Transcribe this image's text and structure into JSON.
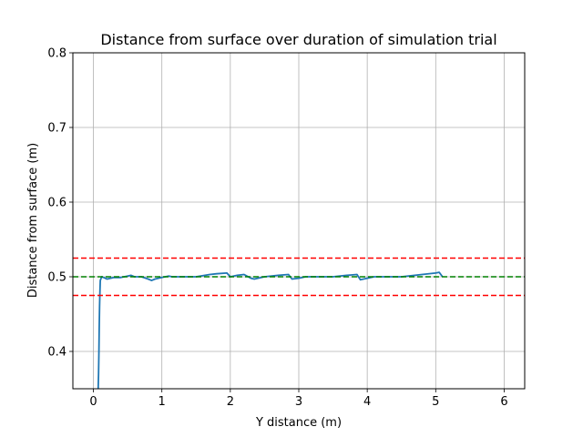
{
  "chart_data": {
    "type": "line",
    "title": "Distance from surface over duration of simulation trial",
    "xlabel": "Y distance (m)",
    "ylabel": "Distance from surface (m)",
    "xlim": [
      -0.3,
      6.3
    ],
    "ylim": [
      0.35,
      0.8
    ],
    "xticks": [
      0,
      1,
      2,
      3,
      4,
      5,
      6
    ],
    "yticks": [
      0.4,
      0.5,
      0.6,
      0.7,
      0.8
    ],
    "xtick_labels": [
      "0",
      "1",
      "2",
      "3",
      "4",
      "5",
      "6"
    ],
    "ytick_labels": [
      "0.4",
      "0.5",
      "0.6",
      "0.7",
      "0.8"
    ],
    "grid": true,
    "series": [
      {
        "color": "#1f77b4",
        "style": "solid",
        "x": [
          0.07,
          0.075,
          0.08,
          0.085,
          0.09,
          0.095,
          0.1,
          0.12,
          0.15,
          0.2,
          0.3,
          0.4,
          0.5,
          0.55,
          0.6,
          0.7,
          0.8,
          0.85,
          0.9,
          1.0,
          1.1,
          1.15,
          1.3,
          1.5,
          1.7,
          1.8,
          1.95,
          2.0,
          2.1,
          2.2,
          2.3,
          2.35,
          2.5,
          2.7,
          2.85,
          2.9,
          3.0,
          3.1,
          3.3,
          3.5,
          3.7,
          3.85,
          3.9,
          4.0,
          4.1,
          4.3,
          4.5,
          4.8,
          5.0,
          5.05,
          5.1
        ],
        "y": [
          0.35,
          0.37,
          0.4,
          0.43,
          0.46,
          0.48,
          0.495,
          0.5,
          0.499,
          0.497,
          0.499,
          0.499,
          0.501,
          0.502,
          0.5,
          0.5,
          0.497,
          0.495,
          0.497,
          0.499,
          0.501,
          0.5,
          0.5,
          0.5,
          0.503,
          0.504,
          0.505,
          0.5,
          0.502,
          0.503,
          0.498,
          0.497,
          0.5,
          0.502,
          0.503,
          0.497,
          0.498,
          0.5,
          0.5,
          0.5,
          0.502,
          0.503,
          0.496,
          0.498,
          0.5,
          0.5,
          0.5,
          0.503,
          0.505,
          0.506,
          0.5
        ]
      },
      {
        "color": "#ff0000",
        "style": "dashed",
        "x": [
          -0.3,
          6.3
        ],
        "y": [
          0.525,
          0.525
        ]
      },
      {
        "color": "#ff0000",
        "style": "dashed",
        "x": [
          -0.3,
          6.3
        ],
        "y": [
          0.475,
          0.475
        ]
      },
      {
        "color": "#008000",
        "style": "dashed",
        "x": [
          -0.3,
          6.3
        ],
        "y": [
          0.5,
          0.5
        ]
      }
    ]
  }
}
